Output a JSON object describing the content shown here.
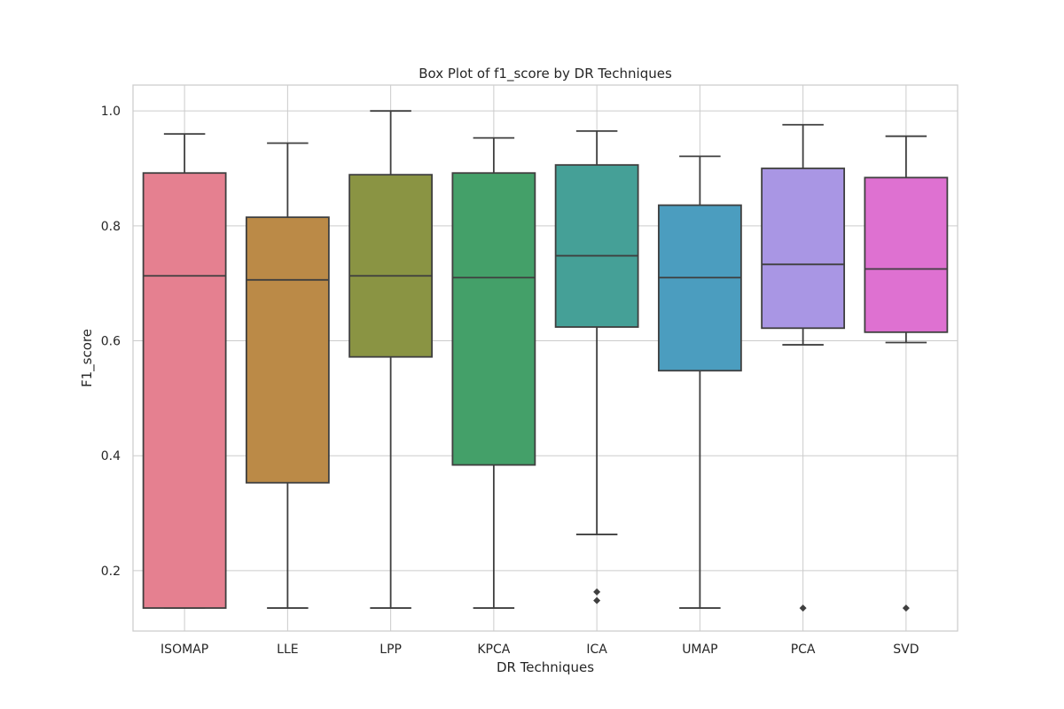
{
  "chart_data": {
    "type": "box",
    "title": "Box Plot of f1_score by DR Techniques",
    "xlabel": "DR Techniques",
    "ylabel": "F1_score",
    "ylim": [
      0.095,
      1.045
    ],
    "yticks": [
      0.2,
      0.4,
      0.6,
      0.8,
      1.0
    ],
    "ytick_labels": [
      "0.2",
      "0.4",
      "0.6",
      "0.8",
      "1.0"
    ],
    "grid": true,
    "categories": [
      "ISOMAP",
      "LLE",
      "LPP",
      "KPCA",
      "ICA",
      "UMAP",
      "PCA",
      "SVD"
    ],
    "series": [
      {
        "name": "ISOMAP",
        "color": "#e58090",
        "whisker_low": 0.135,
        "q1": 0.135,
        "median": 0.713,
        "q3": 0.892,
        "whisker_high": 0.96,
        "outliers": []
      },
      {
        "name": "LLE",
        "color": "#bb8a47",
        "whisker_low": 0.135,
        "q1": 0.353,
        "median": 0.706,
        "q3": 0.815,
        "whisker_high": 0.944,
        "outliers": []
      },
      {
        "name": "LPP",
        "color": "#8a9443",
        "whisker_low": 0.135,
        "q1": 0.572,
        "median": 0.713,
        "q3": 0.889,
        "whisker_high": 1.0,
        "outliers": []
      },
      {
        "name": "KPCA",
        "color": "#44a069",
        "whisker_low": 0.135,
        "q1": 0.384,
        "median": 0.71,
        "q3": 0.892,
        "whisker_high": 0.953,
        "outliers": []
      },
      {
        "name": "ICA",
        "color": "#45a097",
        "whisker_low": 0.263,
        "q1": 0.624,
        "median": 0.748,
        "q3": 0.906,
        "whisker_high": 0.965,
        "outliers": [
          0.163,
          0.148
        ]
      },
      {
        "name": "UMAP",
        "color": "#4b9dbf",
        "whisker_low": 0.135,
        "q1": 0.548,
        "median": 0.71,
        "q3": 0.836,
        "whisker_high": 0.921,
        "outliers": []
      },
      {
        "name": "PCA",
        "color": "#a996e4",
        "whisker_low": 0.593,
        "q1": 0.622,
        "median": 0.733,
        "q3": 0.9,
        "whisker_high": 0.976,
        "outliers": [
          0.135
        ]
      },
      {
        "name": "SVD",
        "color": "#de71d1",
        "whisker_low": 0.597,
        "q1": 0.615,
        "median": 0.725,
        "q3": 0.884,
        "whisker_high": 0.956,
        "outliers": [
          0.135
        ]
      }
    ]
  }
}
